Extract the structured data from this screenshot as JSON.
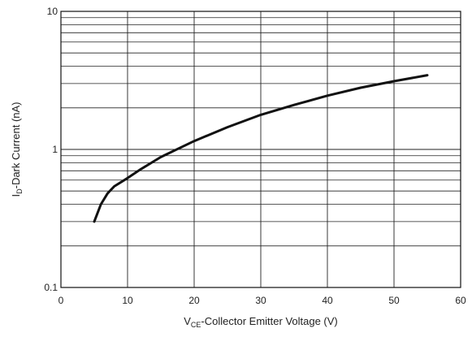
{
  "chart_data": {
    "type": "line",
    "title": "",
    "xlabel": {
      "symbol": "V",
      "subscript": "CE",
      "text": "-Collector Emitter Voltage (V)"
    },
    "ylabel": {
      "symbol": "I",
      "subscript": "D",
      "text": "-Dark Current (nA)"
    },
    "xlim": [
      0,
      60
    ],
    "ylim": [
      0.1,
      10
    ],
    "yscale": "log",
    "grid": true,
    "legend": "none",
    "x_ticks": [
      "0",
      "10",
      "20",
      "30",
      "40",
      "50",
      "60"
    ],
    "y_ticks": [
      "0.1",
      "1",
      "10"
    ],
    "series": [
      {
        "color": "#111111",
        "x": [
          5,
          6,
          7,
          8,
          10,
          12,
          15,
          20,
          25,
          30,
          35,
          40,
          45,
          50,
          55
        ],
        "y": [
          0.3,
          0.4,
          0.48,
          0.54,
          0.62,
          0.72,
          0.88,
          1.15,
          1.45,
          1.78,
          2.1,
          2.45,
          2.8,
          3.12,
          3.45
        ]
      }
    ]
  }
}
